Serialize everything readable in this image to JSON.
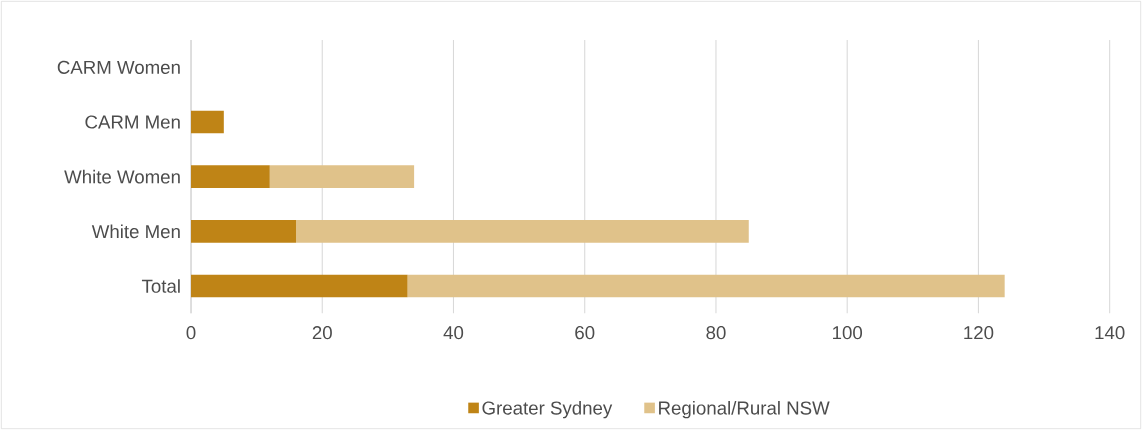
{
  "chart_data": {
    "type": "bar",
    "orientation": "horizontal",
    "stacked": true,
    "categories": [
      "CARM Women",
      "CARM Men",
      "White Women",
      "White Men",
      "Total"
    ],
    "series": [
      {
        "name": "Greater Sydney",
        "color": "#bf8416",
        "values": [
          0,
          5,
          12,
          16,
          33
        ]
      },
      {
        "name": "Regional/Rural NSW",
        "color": "#e0c28a",
        "values": [
          0,
          0,
          22,
          69,
          91
        ]
      }
    ],
    "xlim": [
      0,
      140
    ],
    "xticks": [
      0,
      20,
      40,
      60,
      80,
      100,
      120,
      140
    ],
    "grid": "x",
    "legend": "bottom"
  }
}
